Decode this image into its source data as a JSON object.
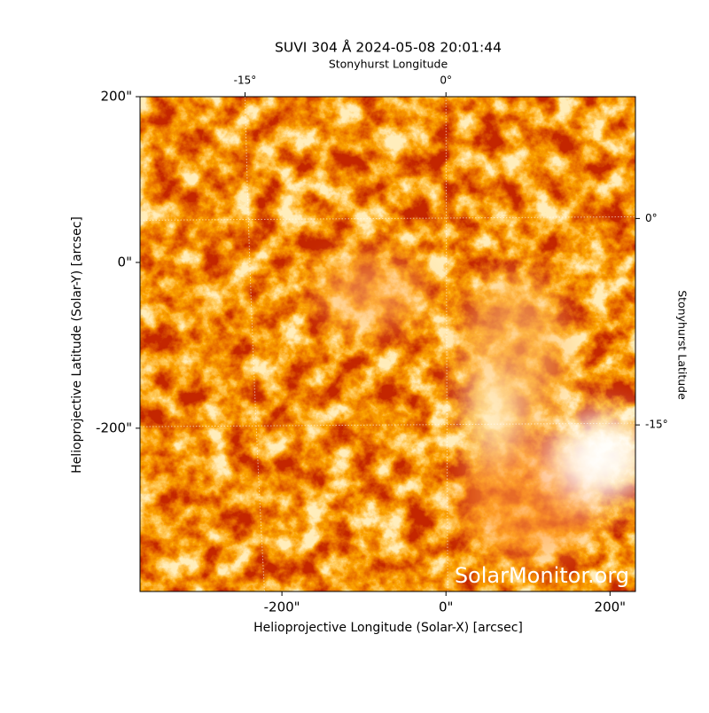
{
  "chart_data": {
    "type": "image",
    "title": "SUVI 304 Å 2024-05-08 20:01:44",
    "xlabel": "Helioprojective Longitude (Solar-X) [arcsec]",
    "ylabel": "Helioprojective Latitude (Solar-Y) [arcsec]",
    "x2label": "Stonyhurst Longitude",
    "y2label": "Stonyhurst Latitude",
    "xlim": [
      -373,
      231
    ],
    "ylim": [
      -397,
      200
    ],
    "xticks": [
      {
        "value": -200,
        "label": "-200\""
      },
      {
        "value": 0,
        "label": "0\""
      },
      {
        "value": 200,
        "label": "200\""
      }
    ],
    "yticks": [
      {
        "value": -200,
        "label": "-200\""
      },
      {
        "value": 0,
        "label": "0\""
      },
      {
        "value": 200,
        "label": "200\""
      }
    ],
    "x2ticks": [
      {
        "value": -15,
        "label": "-15°",
        "x": -245
      },
      {
        "value": 0,
        "label": "0°",
        "x": 0
      }
    ],
    "y2ticks": [
      {
        "value": 0,
        "label": "0°",
        "y": 53
      },
      {
        "value": -15,
        "label": "-15°",
        "y": -196
      }
    ],
    "watermark": "SolarMonitor.org"
  }
}
